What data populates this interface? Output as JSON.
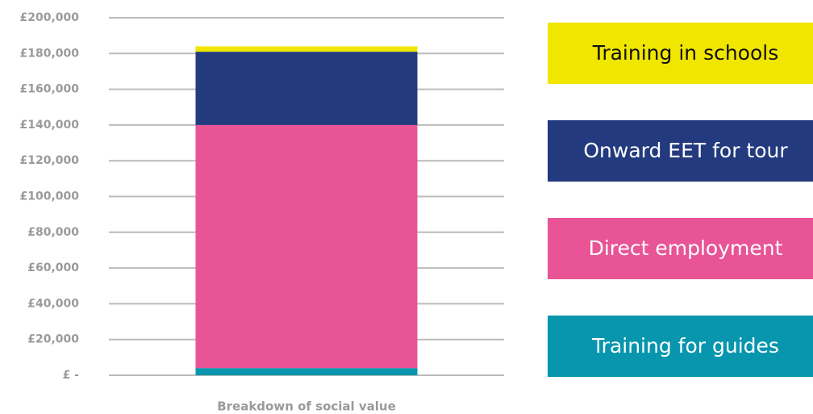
{
  "chart_data": {
    "type": "stacked_bar",
    "categories": [
      "Breakdown of social value"
    ],
    "series": [
      {
        "name": "Training for guides",
        "color": "#0796ad",
        "values": [
          4000
        ]
      },
      {
        "name": "Direct employment",
        "color": "#e85496",
        "values": [
          136000
        ]
      },
      {
        "name": "Onward EET for tour",
        "color": "#233a7e",
        "values": [
          41000
        ]
      },
      {
        "name": "Training in schools",
        "color": "#f0e600",
        "values": [
          3000
        ]
      }
    ],
    "ylim": [
      0,
      200000
    ],
    "yticks": [
      {
        "value": 0,
        "label": "£ -"
      },
      {
        "value": 20000,
        "label": "£20,000"
      },
      {
        "value": 40000,
        "label": "£40,000"
      },
      {
        "value": 60000,
        "label": "£60,000"
      },
      {
        "value": 80000,
        "label": "£80,000"
      },
      {
        "value": 100000,
        "label": "£100,000"
      },
      {
        "value": 120000,
        "label": "£120,000"
      },
      {
        "value": 140000,
        "label": "£140,000"
      },
      {
        "value": 160000,
        "label": "£160,000"
      },
      {
        "value": 180000,
        "label": "£180,000"
      },
      {
        "value": 200000,
        "label": "£200,000"
      }
    ],
    "grid": true
  }
}
